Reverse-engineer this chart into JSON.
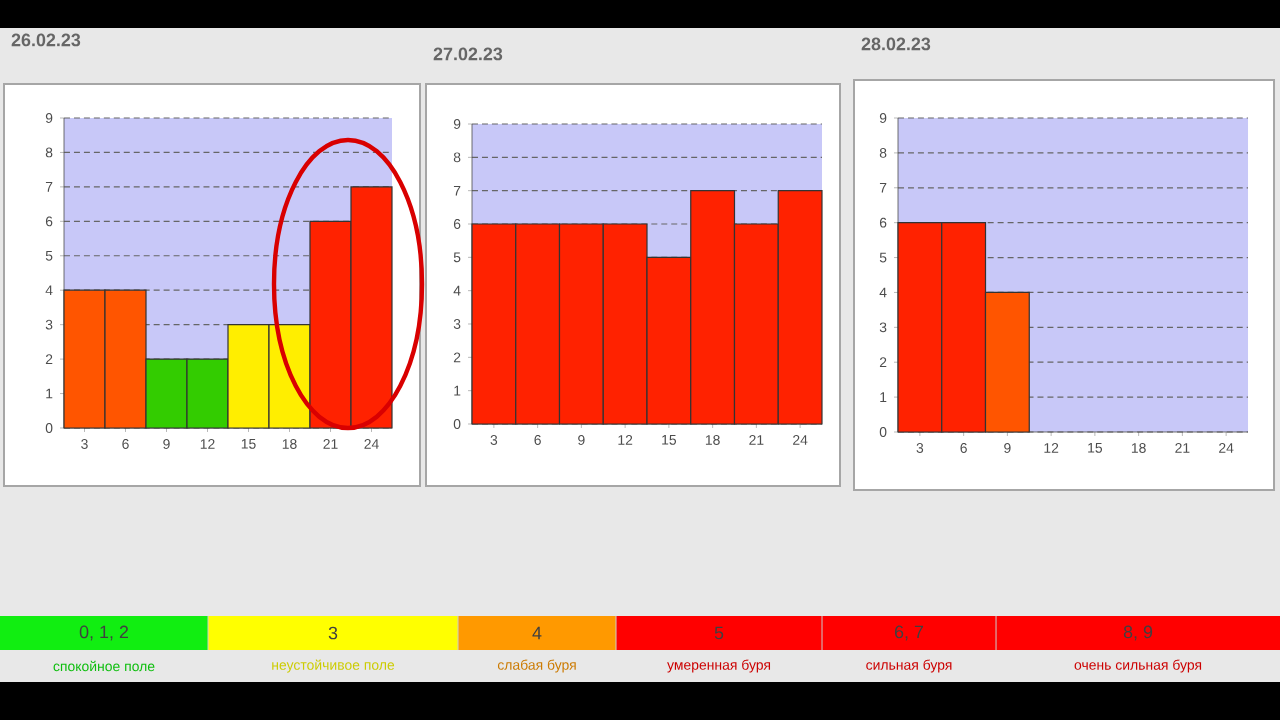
{
  "chart_data": [
    {
      "type": "bar",
      "title": "26.02.23",
      "categories": [
        "3",
        "6",
        "9",
        "12",
        "15",
        "18",
        "21",
        "24"
      ],
      "values": [
        4,
        4,
        2,
        2,
        3,
        3,
        6,
        7
      ],
      "colors": [
        "#ff5500",
        "#ff5500",
        "#33cc00",
        "#33cc00",
        "#ffee00",
        "#ffee00",
        "#ff2200",
        "#ff2200"
      ],
      "ylim": [
        0,
        9
      ],
      "yticks": [
        0,
        1,
        2,
        3,
        4,
        5,
        6,
        7,
        8,
        9
      ],
      "grid": "y",
      "bands": [
        {
          "axis": "y",
          "from": 0,
          "to": 9,
          "color": "#c8c8f8"
        }
      ]
    },
    {
      "type": "bar",
      "title": "27.02.23",
      "categories": [
        "3",
        "6",
        "9",
        "12",
        "15",
        "18",
        "21",
        "24"
      ],
      "values": [
        6,
        6,
        6,
        6,
        5,
        7,
        6,
        7
      ],
      "colors": [
        "#ff2200",
        "#ff2200",
        "#ff2200",
        "#ff2200",
        "#ff2200",
        "#ff2200",
        "#ff2200",
        "#ff2200"
      ],
      "ylim": [
        0,
        9
      ],
      "yticks": [
        0,
        1,
        2,
        3,
        4,
        5,
        6,
        7,
        8,
        9
      ],
      "grid": "y",
      "bands": [
        {
          "axis": "y",
          "from": 0,
          "to": 9,
          "color": "#c8c8f8"
        }
      ]
    },
    {
      "type": "bar",
      "title": "28.02.23",
      "categories": [
        "3",
        "6",
        "9",
        "12",
        "15",
        "18",
        "21",
        "24"
      ],
      "values": [
        6,
        6,
        4,
        null,
        null,
        null,
        null,
        null
      ],
      "colors": [
        "#ff2200",
        "#ff2200",
        "#ff5500",
        "#ff2200",
        "#ff2200",
        "#ff2200",
        "#ff2200",
        "#ff2200"
      ],
      "ylim": [
        0,
        9
      ],
      "yticks": [
        0,
        1,
        2,
        3,
        4,
        5,
        6,
        7,
        8,
        9
      ],
      "grid": "y",
      "bands": [
        {
          "axis": "y",
          "from": 0,
          "to": 9,
          "color": "#c8c8f8"
        }
      ]
    },
    {
      "type": "other",
      "categories": [
        "0, 1, 2",
        "3",
        "4",
        "5",
        "6, 7",
        "8, 9"
      ],
      "colors": [
        "#11ee11",
        "#ffff00",
        "#ff9900",
        "#ff0000",
        "#ff0000",
        "#ff0000"
      ],
      "annotations": [
        "спокойное поле",
        "неустойчивое поле",
        "слабая буря",
        "умеренная буря",
        "сильная буря",
        "очень сильная буря"
      ]
    }
  ]
}
